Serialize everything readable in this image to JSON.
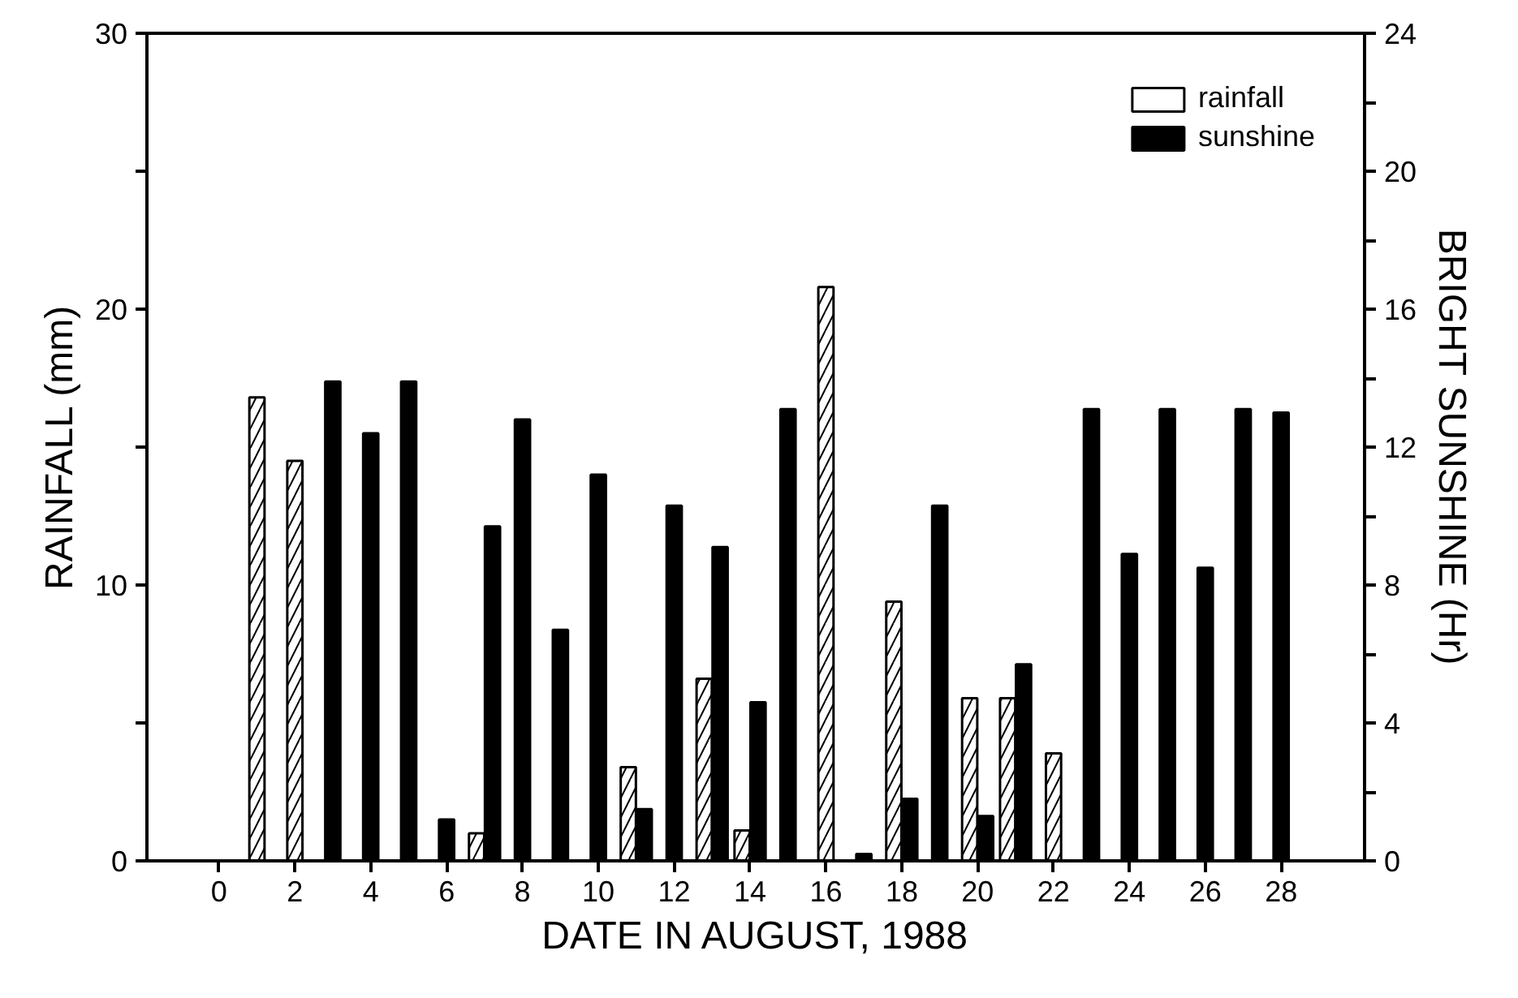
{
  "chart_data": {
    "type": "bar",
    "xlabel": "DATE IN AUGUST, 1988",
    "ylabel": "RAINFALL (mm)",
    "y2label": "BRIGHT SUNSHINE (Hr)",
    "x": [
      1,
      2,
      3,
      4,
      5,
      6,
      7,
      8,
      9,
      10,
      11,
      12,
      13,
      14,
      15,
      16,
      17,
      18,
      19,
      20,
      21,
      22,
      23,
      24,
      25,
      26,
      27,
      28
    ],
    "series": [
      {
        "name": "rainfall",
        "color": "#ffffff",
        "values": [
          16.8,
          14.5,
          null,
          null,
          null,
          null,
          1.0,
          null,
          null,
          null,
          3.4,
          null,
          6.6,
          1.1,
          null,
          20.8,
          null,
          9.4,
          null,
          5.9,
          5.9,
          3.9,
          null,
          null,
          null,
          null,
          null,
          null
        ]
      },
      {
        "name": "sunshine",
        "color": "#000000",
        "axis": "y2",
        "values": [
          null,
          null,
          13.9,
          12.4,
          13.9,
          1.2,
          9.7,
          12.8,
          6.7,
          11.2,
          1.5,
          10.3,
          9.1,
          4.6,
          13.1,
          null,
          0.2,
          1.8,
          10.3,
          1.3,
          5.7,
          null,
          13.1,
          8.9,
          13.1,
          8.5,
          13.1,
          13.0
        ]
      }
    ],
    "xlim": [
      -1.9,
      30.2
    ],
    "xticks": [
      0,
      2,
      4,
      6,
      8,
      10,
      12,
      14,
      16,
      18,
      20,
      22,
      24,
      26,
      28
    ],
    "ylim": [
      0,
      30
    ],
    "yticks": [
      0,
      {
        "value": 5,
        "label": null
      },
      10,
      {
        "value": 15,
        "label": null
      },
      20,
      {
        "value": 25,
        "label": null
      },
      30
    ],
    "y2lim": [
      0,
      24
    ],
    "y2ticks": [
      0,
      {
        "value": 2,
        "label": null
      },
      4,
      {
        "value": 6,
        "label": null
      },
      8,
      {
        "value": 10,
        "label": null
      },
      12,
      {
        "value": 14,
        "label": null
      },
      16,
      {
        "value": 18,
        "label": null
      },
      20,
      {
        "value": 22,
        "label": null
      },
      24
    ],
    "grid": false,
    "legend": "top right"
  }
}
